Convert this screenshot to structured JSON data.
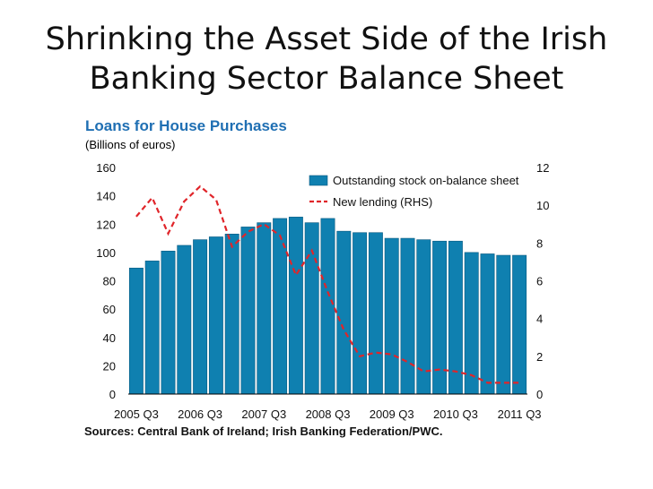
{
  "slide": {
    "title_line1": "Shrinking the Asset Side of the Irish",
    "title_line2": "Banking Sector Balance Sheet",
    "source": "Sources: Central Bank of Ireland; Irish Banking Federation/PWC."
  },
  "colors": {
    "bar": "#0f80b0",
    "bar_edge": "#0a5a80",
    "line": "#e0252a",
    "title_accent": "#1f6fb3"
  },
  "chart_data": {
    "type": "bar",
    "title": "Loans for House Purchases",
    "subtitle": "(Billions of euros)",
    "ylim": [
      0,
      160
    ],
    "y_ticks": [
      "0",
      "20",
      "40",
      "60",
      "80",
      "100",
      "120",
      "140",
      "160"
    ],
    "y2lim": [
      0,
      12
    ],
    "y2_ticks": [
      "0",
      "2",
      "4",
      "6",
      "8",
      "10",
      "12"
    ],
    "x_tick_labels": [
      "2005 Q3",
      "2006 Q3",
      "2007 Q3",
      "2008 Q3",
      "2009 Q3",
      "2010 Q3",
      "2011 Q3"
    ],
    "x_tick_indices": [
      0,
      4,
      8,
      12,
      16,
      20,
      24
    ],
    "categories": [
      "2005 Q3",
      "2005 Q4",
      "2006 Q1",
      "2006 Q2",
      "2006 Q3",
      "2006 Q4",
      "2007 Q1",
      "2007 Q2",
      "2007 Q3",
      "2007 Q4",
      "2008 Q1",
      "2008 Q2",
      "2008 Q3",
      "2008 Q4",
      "2009 Q1",
      "2009 Q2",
      "2009 Q3",
      "2009 Q4",
      "2010 Q1",
      "2010 Q2",
      "2010 Q3",
      "2010 Q4",
      "2011 Q1",
      "2011 Q2",
      "2011 Q3"
    ],
    "series": [
      {
        "name": "Outstanding stock on-balance sheet",
        "kind": "bar",
        "axis": "left",
        "values": [
          89,
          94,
          101,
          105,
          109,
          111,
          113,
          118,
          121,
          124,
          125,
          121,
          124,
          115,
          114,
          114,
          110,
          110,
          109,
          108,
          108,
          100,
          99,
          98,
          98
        ]
      },
      {
        "name": "New lending (RHS)",
        "kind": "line",
        "style": "dashed",
        "axis": "right",
        "values": [
          9.4,
          10.4,
          8.5,
          10.2,
          11.0,
          10.3,
          7.8,
          8.6,
          9.0,
          8.4,
          6.3,
          7.6,
          5.4,
          3.4,
          2.0,
          2.2,
          2.1,
          1.7,
          1.2,
          1.3,
          1.2,
          1.0,
          0.6,
          0.6,
          0.6
        ]
      }
    ],
    "legend_position": "top-right",
    "grid": false
  }
}
